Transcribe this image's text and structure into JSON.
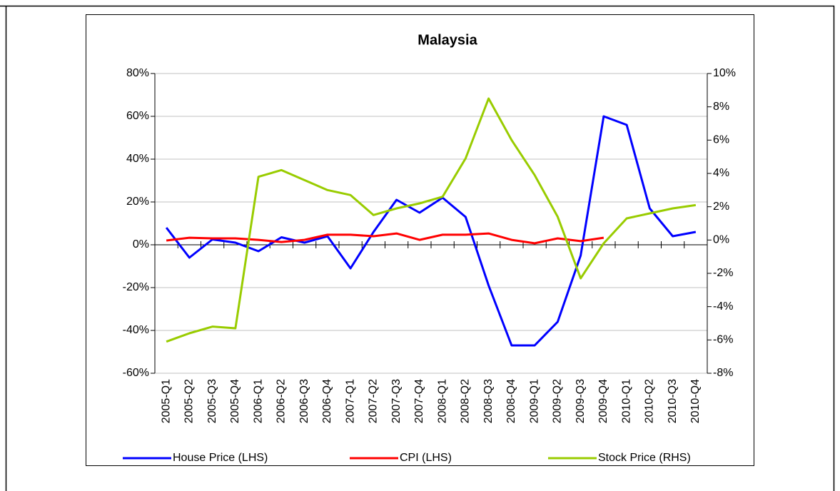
{
  "chart_data": {
    "type": "line",
    "title": "Malaysia",
    "categories": [
      "2005-Q1",
      "2005-Q2",
      "2005-Q3",
      "2005-Q4",
      "2006-Q1",
      "2006-Q2",
      "2006-Q3",
      "2006-Q4",
      "2007-Q1",
      "2007-Q2",
      "2007-Q3",
      "2007-Q4",
      "2008-Q1",
      "2008-Q2",
      "2008-Q3",
      "2008-Q4",
      "2009-Q1",
      "2009-Q2",
      "2009-Q3",
      "2009-Q4",
      "2010-Q1",
      "2010-Q2",
      "2010-Q3",
      "2010-Q4"
    ],
    "series": [
      {
        "name": "House Price (LHS)",
        "color": "#0000ff",
        "values": [
          8,
          -6,
          2.5,
          1,
          -3,
          3.5,
          1,
          4,
          -11,
          6,
          21,
          15,
          22,
          13,
          -19,
          -47,
          -47,
          -36,
          -5,
          60,
          56,
          17,
          4,
          6
        ]
      },
      {
        "name": "CPI (LHS)",
        "color": "#ff0000",
        "values": [
          2,
          3.3,
          3,
          3,
          2.3,
          1.3,
          2.3,
          4.7,
          4.7,
          4,
          5.3,
          2.3,
          4.7,
          4.7,
          5.3,
          2.3,
          0.7,
          3,
          1.7,
          3.3,
          null,
          null,
          null,
          null
        ]
      },
      {
        "name": "Stock Price (RHS)",
        "color": "#99cc00",
        "axis": "y2",
        "values": [
          -6.1,
          -5.6,
          -5.2,
          -5.3,
          3.8,
          4.2,
          3.6,
          3.0,
          2.7,
          1.5,
          1.9,
          2.2,
          2.6,
          4.9,
          8.5,
          6.0,
          3.9,
          1.4,
          -2.3,
          -0.2,
          1.3,
          1.6,
          1.9,
          2.1
        ]
      }
    ],
    "ylim": [
      -60,
      80
    ],
    "yticks": [
      {
        "value": -60,
        "label": "-60%"
      },
      {
        "value": -40,
        "label": "-40%"
      },
      {
        "value": -20,
        "label": "-20%"
      },
      {
        "value": 0,
        "label": "0%"
      },
      {
        "value": 20,
        "label": "20%"
      },
      {
        "value": 40,
        "label": "40%"
      },
      {
        "value": 60,
        "label": "60%"
      },
      {
        "value": 80,
        "label": "80%"
      }
    ],
    "y2lim": [
      -8,
      10
    ],
    "y2ticks": [
      {
        "value": -8,
        "label": "-8%"
      },
      {
        "value": -6,
        "label": "-6%"
      },
      {
        "value": -4,
        "label": "-4%"
      },
      {
        "value": -2,
        "label": "-2%"
      },
      {
        "value": 0,
        "label": "0%"
      },
      {
        "value": 2,
        "label": "2%"
      },
      {
        "value": 4,
        "label": "4%"
      },
      {
        "value": 6,
        "label": "6%"
      },
      {
        "value": 8,
        "label": "8%"
      },
      {
        "value": 10,
        "label": "10%"
      }
    ],
    "grid": true,
    "legend": "bottom"
  }
}
